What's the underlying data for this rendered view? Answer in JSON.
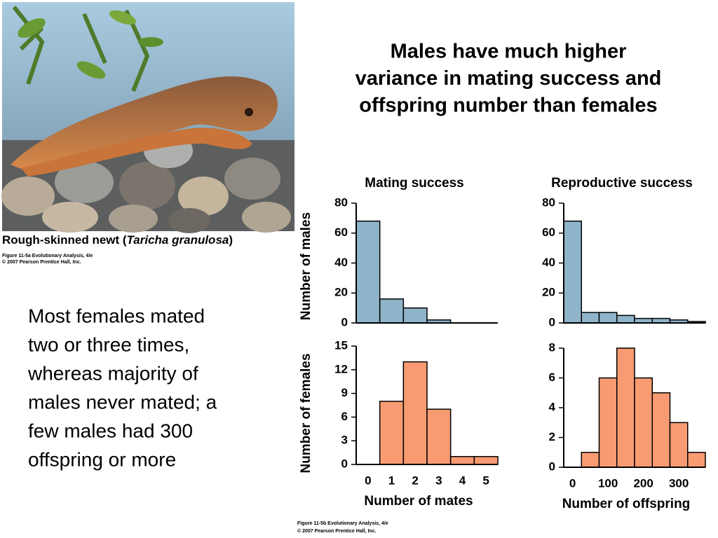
{
  "slide": {
    "title_lines": [
      "Males have much higher",
      "variance in mating success and",
      "offspring number than females"
    ],
    "body_lines": [
      "Most females mated",
      "two or three times,",
      "whereas majority of",
      "males never mated; a",
      "few males had 300",
      "offspring or more"
    ],
    "photo_caption": {
      "before": "Rough-skinned newt (",
      "italic": "Taricha granulosa",
      "after": ")"
    },
    "photo_credit": [
      "Figure 11-5a  Evolutionary Analysis, 4/e",
      "© 2007 Pearson Prentice Hall, Inc."
    ],
    "figure_credit": [
      "Figure 11-5b  Evolutionary Analysis, 4/e",
      "© 2007 Pearson Prentice Hall, Inc."
    ]
  },
  "chart_data": [
    {
      "type": "bar",
      "title": "Mating success",
      "ylabel": "Number of males",
      "values": [
        68,
        16,
        10,
        2,
        0,
        0
      ],
      "color": "#8fb4c9",
      "ylim": [
        0,
        80
      ],
      "yticks": [
        0,
        20,
        40,
        60,
        80
      ]
    },
    {
      "type": "histogram",
      "title": "Reproductive success",
      "bins": [
        -25,
        25,
        75,
        125,
        175,
        225,
        275,
        325,
        375
      ],
      "values": [
        68,
        7,
        7,
        5,
        3,
        3,
        2,
        1
      ],
      "color": "#8fb4c9",
      "xlim": [
        -25,
        375
      ],
      "ylim": [
        0,
        80
      ],
      "yticks": [
        0,
        20,
        40,
        60,
        80
      ]
    },
    {
      "type": "bar",
      "ylabel": "Number of females",
      "xlabel": "Number of mates",
      "categories": [
        "0",
        "1",
        "2",
        "3",
        "4",
        "5"
      ],
      "values": [
        0,
        8,
        13,
        7,
        1,
        1
      ],
      "color": "#f89b72",
      "ylim": [
        0,
        15
      ],
      "yticks": [
        0,
        3,
        6,
        9,
        12,
        15
      ]
    },
    {
      "type": "histogram",
      "xlabel": "Number of offspring",
      "bins": [
        -25,
        25,
        75,
        125,
        175,
        225,
        275,
        325,
        375
      ],
      "values": [
        0,
        1,
        6,
        8,
        6,
        5,
        3,
        1
      ],
      "color": "#f89b72",
      "xlim": [
        -25,
        375
      ],
      "xticks": [
        0,
        100,
        200,
        300
      ],
      "ylim": [
        0,
        8
      ],
      "yticks": [
        0,
        2,
        4,
        6,
        8
      ]
    }
  ]
}
